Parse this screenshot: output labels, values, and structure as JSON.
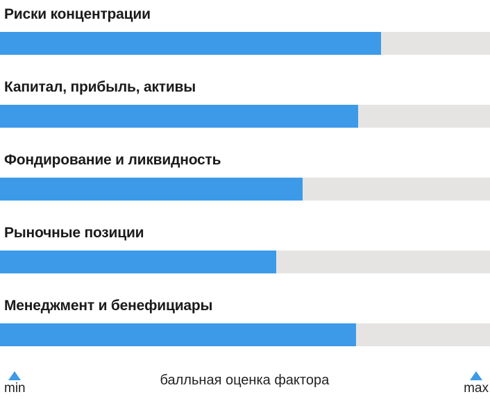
{
  "chart_data": {
    "type": "bar",
    "orientation": "horizontal",
    "categories": [
      "Риски концентрации",
      "Капитал, прибыль, активы",
      "Фондирование и ликвидность",
      "Рыночные позиции",
      "Менеджмент и бенефициары"
    ],
    "values": [
      77.8,
      73.1,
      61.8,
      56.4,
      72.7
    ],
    "value_unit": "percent of min–max scale (bar fill vs full track)",
    "xlabel": "балльная оценка фактора",
    "x_min_label": "min",
    "x_max_label": "max",
    "grid": false,
    "legend_position": "bottom",
    "colors": {
      "bar_fill": "#3d9ae8",
      "bar_track": "#e5e4e2",
      "label_text": "#1b1b1b",
      "marker": "#3d9ae8"
    }
  }
}
